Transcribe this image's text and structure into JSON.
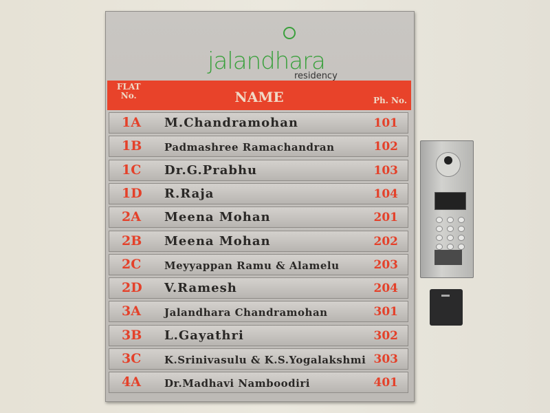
{
  "board": {
    "logo": {
      "main": "jalandhara",
      "sub": "residency",
      "color": "#3aa03c"
    },
    "header": {
      "flat_line1": "FLAT",
      "flat_line2": "No.",
      "name": "NAME",
      "phone": "Ph. No.",
      "color": "#e8432a"
    },
    "rows": [
      {
        "flat": "1A",
        "name": "M.Chandramohan",
        "phone": "101"
      },
      {
        "flat": "1B",
        "name": "Padmashree Ramachandran",
        "phone": "102"
      },
      {
        "flat": "1C",
        "name": "Dr.G.Prabhu",
        "phone": "103"
      },
      {
        "flat": "1D",
        "name": "R.Raja",
        "phone": "104"
      },
      {
        "flat": "2A",
        "name": "Meena Mohan",
        "phone": "201"
      },
      {
        "flat": "2B",
        "name": "Meena Mohan",
        "phone": "202"
      },
      {
        "flat": "2C",
        "name": "Meyyappan Ramu & Alamelu",
        "phone": "203"
      },
      {
        "flat": "2D",
        "name": "V.Ramesh",
        "phone": "204"
      },
      {
        "flat": "3A",
        "name": "Jalandhara Chandramohan",
        "phone": "301"
      },
      {
        "flat": "3B",
        "name": "L.Gayathri",
        "phone": "302"
      },
      {
        "flat": "3C",
        "name": "K.Srinivasulu & K.S.Yogalakshmi",
        "phone": "303"
      },
      {
        "flat": "4A",
        "name": "Dr.Madhavi Namboodiri",
        "phone": "401"
      }
    ]
  },
  "icons": {
    "intercom": "video-door-phone-icon",
    "reader": "card-reader-icon"
  }
}
